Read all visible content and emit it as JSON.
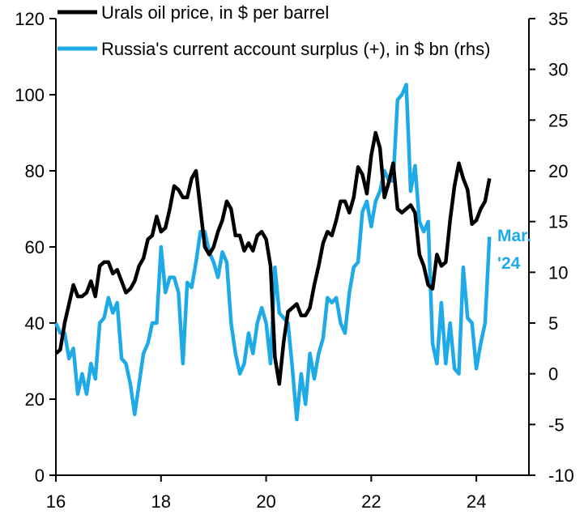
{
  "chart_data": {
    "type": "line",
    "title": "",
    "xlabel": "",
    "ylabel_left": "",
    "ylabel_right": "",
    "x_ticks": [
      "16",
      "18",
      "20",
      "22",
      "24"
    ],
    "x_tick_values": [
      2016,
      2018,
      2020,
      2022,
      2024
    ],
    "xlim": [
      2016,
      2025
    ],
    "y_left": {
      "ylim": [
        0,
        120
      ],
      "ticks": [
        "0",
        "20",
        "40",
        "60",
        "80",
        "100",
        "120"
      ],
      "tick_values": [
        0,
        20,
        40,
        60,
        80,
        100,
        120
      ]
    },
    "y_right": {
      "ylim": [
        -10,
        35
      ],
      "ticks": [
        "-10",
        "-5",
        "0",
        "5",
        "10",
        "15",
        "20",
        "25",
        "30",
        "35"
      ],
      "tick_values": [
        -10,
        -5,
        0,
        5,
        10,
        15,
        20,
        25,
        30,
        35
      ]
    },
    "grid": false,
    "legend_position": "top-left",
    "series": [
      {
        "name": "Urals oil price, in $ per barrel",
        "axis": "left",
        "color": "#000000",
        "start": 2016.0,
        "step_months": 1,
        "values": [
          32,
          33,
          40,
          45,
          50,
          47,
          47,
          48,
          51,
          47,
          55,
          56,
          56,
          53,
          54,
          51,
          48,
          49,
          51,
          55,
          57,
          62,
          63,
          68,
          64,
          65,
          70,
          76,
          75,
          73,
          73,
          78,
          80,
          70,
          60,
          58,
          60,
          64,
          67,
          72,
          70,
          63,
          63,
          59,
          61,
          59,
          63,
          64,
          62,
          55,
          31,
          24,
          35,
          43,
          44,
          45,
          42,
          42,
          44,
          50,
          55,
          61,
          64,
          63,
          67,
          72,
          72,
          69,
          73,
          81,
          79,
          74,
          84,
          90,
          86,
          73,
          77,
          82,
          70,
          69,
          70,
          71,
          69,
          58,
          55,
          50,
          49,
          58,
          55,
          56,
          67,
          76,
          82,
          78,
          75,
          66,
          67,
          70,
          72,
          78
        ]
      },
      {
        "name": "Russia's current account surplus (+), in $ bn (rhs)",
        "axis": "right",
        "color": "#1eaae7",
        "start": 2016.0,
        "step_months": 1,
        "values": [
          5,
          4,
          4,
          1.5,
          2.5,
          -2,
          0,
          -2,
          1,
          -0.5,
          5,
          5.5,
          7.5,
          6,
          7,
          1.5,
          1,
          -1,
          -4,
          -1,
          2,
          3,
          5,
          5,
          12.5,
          8,
          9.5,
          9.5,
          8,
          1,
          9,
          8.5,
          11,
          14,
          14,
          12,
          11,
          9.5,
          12,
          11,
          5,
          2,
          0,
          1,
          4,
          2,
          5,
          6.5,
          5,
          1,
          10.5,
          6,
          5.5,
          5,
          0.5,
          -4.5,
          0,
          -3,
          2,
          -0.5,
          2,
          3.5,
          7.5,
          7,
          7.5,
          5,
          4,
          8,
          10.5,
          11,
          16,
          17,
          14.5,
          17,
          18,
          20,
          19,
          19,
          27,
          27.5,
          28.5,
          18,
          20.5,
          15,
          14,
          15,
          3,
          1,
          7,
          1,
          5,
          0.5,
          0,
          10.5,
          5.5,
          5,
          0.5,
          3,
          5,
          13.5
        ]
      }
    ],
    "annotations": [
      {
        "text_line1": "Mar.",
        "text_line2": "'24",
        "color": "#1eaae7",
        "series": 1
      }
    ]
  }
}
